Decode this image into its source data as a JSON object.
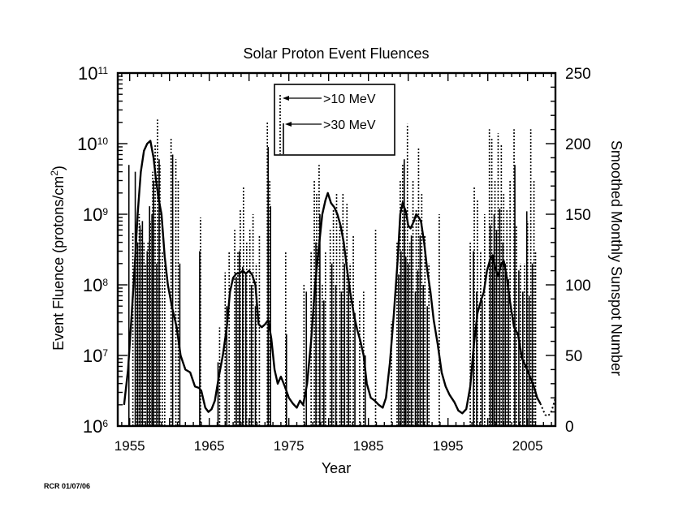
{
  "chart_data": {
    "type": "bar",
    "title": "Solar Proton Event Fluences",
    "xlabel": "Year",
    "ylabel": "Event Fluence  (protons/cm",
    "ylabel_sup": "2",
    "ylabel_close": ")",
    "y2label": "Smoothed Monthly Sunspot Number",
    "xlim": [
      1953.5,
      2008.5
    ],
    "ylim_log10": [
      6,
      11
    ],
    "y2lim": [
      0,
      250
    ],
    "x_ticks": [
      "1955",
      "1965",
      "1975",
      "1985",
      "1995",
      "2005"
    ],
    "y_ticks": [
      {
        "base": "10",
        "exp": "6"
      },
      {
        "base": "10",
        "exp": "7"
      },
      {
        "base": "10",
        "exp": "8"
      },
      {
        "base": "10",
        "exp": "9"
      },
      {
        "base": "10",
        "exp": "10"
      },
      {
        "base": "10",
        "exp": "11"
      }
    ],
    "y2_ticks": [
      "0",
      "50",
      "100",
      "150",
      "200",
      "250"
    ],
    "legend": {
      "position": "top-center",
      "entries": [
        {
          "label": ">10 MeV",
          "style": "dotted"
        },
        {
          "label": ">30 MeV",
          "style": "solid"
        }
      ]
    },
    "series": [
      {
        "name": ">10 MeV",
        "style": "dotted",
        "events": [
          [
            1955.4,
            560000000.0
          ],
          [
            1955.9,
            300000000.0
          ],
          [
            1956.2,
            1000000000.0
          ],
          [
            1956.5,
            600000000.0
          ],
          [
            1956.8,
            400000000.0
          ],
          [
            1957.0,
            200000000.0
          ],
          [
            1957.3,
            400000000.0
          ],
          [
            1957.6,
            800000000.0
          ],
          [
            1957.9,
            4000000000.0
          ],
          [
            1958.2,
            10000000000.0
          ],
          [
            1958.5,
            22000000000.0
          ],
          [
            1958.8,
            5000000000.0
          ],
          [
            1959.1,
            300000000.0
          ],
          [
            1959.4,
            200000000.0
          ],
          [
            1960.2,
            12000000000.0
          ],
          [
            1960.8,
            6000000000.0
          ],
          [
            1961.1,
            3000000000.0
          ],
          [
            1963.9,
            900000000.0
          ],
          [
            1966.3,
            25000000.0
          ],
          [
            1967.0,
            150000000.0
          ],
          [
            1967.5,
            300000000.0
          ],
          [
            1968.2,
            600000000.0
          ],
          [
            1968.6,
            300000000.0
          ],
          [
            1968.9,
            1200000000.0
          ],
          [
            1969.3,
            2400000000.0
          ],
          [
            1969.7,
            400000000.0
          ],
          [
            1970.1,
            600000000.0
          ],
          [
            1970.5,
            1000000000.0
          ],
          [
            1970.9,
            200000000.0
          ],
          [
            1971.3,
            500000000.0
          ],
          [
            1972.3,
            20000000000.0
          ],
          [
            1972.6,
            3000000000.0
          ],
          [
            1974.6,
            300000000.0
          ],
          [
            1976.9,
            100000000.0
          ],
          [
            1977.8,
            300000000.0
          ],
          [
            1978.2,
            3000000000.0
          ],
          [
            1978.5,
            2000000000.0
          ],
          [
            1978.8,
            5000000000.0
          ],
          [
            1979.2,
            100000000.0
          ],
          [
            1979.6,
            300000000.0
          ],
          [
            1980.2,
            600000000.0
          ],
          [
            1980.6,
            1200000000.0
          ],
          [
            1981.0,
            2000000000.0
          ],
          [
            1981.4,
            800000000.0
          ],
          [
            1981.8,
            2000000000.0
          ],
          [
            1982.3,
            1400000000.0
          ],
          [
            1982.7,
            200000000.0
          ],
          [
            1983.1,
            500000000.0
          ],
          [
            1983.9,
            60000000.0
          ],
          [
            1984.4,
            80000000.0
          ],
          [
            1985.9,
            600000000.0
          ],
          [
            1987.9,
            30000000.0
          ],
          [
            1988.6,
            400000000.0
          ],
          [
            1989.0,
            3000000000.0
          ],
          [
            1989.3,
            5000000000.0
          ],
          [
            1989.6,
            1000000000.0
          ],
          [
            1989.9,
            19000000000.0
          ],
          [
            1990.2,
            400000000.0
          ],
          [
            1990.6,
            3000000000.0
          ],
          [
            1991.0,
            1200000000.0
          ],
          [
            1991.3,
            9000000000.0
          ],
          [
            1991.7,
            2000000000.0
          ],
          [
            1992.1,
            500000000.0
          ],
          [
            1992.6,
            200000000.0
          ],
          [
            1993.9,
            1000000000.0
          ],
          [
            1997.8,
            400000000.0
          ],
          [
            1998.3,
            2400000000.0
          ],
          [
            1998.7,
            1600000000.0
          ],
          [
            1999.1,
            300000000.0
          ],
          [
            1999.6,
            1000000000.0
          ],
          [
            2000.2,
            16000000000.0
          ],
          [
            2000.5,
            12000000000.0
          ],
          [
            2000.9,
            3000000000.0
          ],
          [
            2001.3,
            14000000000.0
          ],
          [
            2001.7,
            10000000000.0
          ],
          [
            2002.0,
            2000000000.0
          ],
          [
            2002.4,
            1200000000.0
          ],
          [
            2002.8,
            3000000000.0
          ],
          [
            2003.3,
            16000000000.0
          ],
          [
            2003.6,
            700000000.0
          ],
          [
            2004.1,
            200000000.0
          ],
          [
            2004.6,
            200000000.0
          ],
          [
            2005.0,
            800000000.0
          ],
          [
            2005.4,
            16000000000.0
          ],
          [
            2005.8,
            3000000000.0
          ],
          [
            2006.0,
            300000000.0
          ]
        ]
      },
      {
        "name": ">30 MeV",
        "style": "solid",
        "events": [
          [
            1954.9,
            5000000000.0
          ],
          [
            1955.7,
            4000000000.0
          ],
          [
            1956.0,
            400000000.0
          ],
          [
            1956.3,
            700000000.0
          ],
          [
            1956.6,
            800000000.0
          ],
          [
            1957.2,
            300000000.0
          ],
          [
            1957.5,
            1300000000.0
          ],
          [
            1957.8,
            1000000000.0
          ],
          [
            1958.0,
            3000000000.0
          ],
          [
            1958.4,
            200000000.0
          ],
          [
            1958.7,
            6000000000.0
          ],
          [
            1960.4,
            7000000000.0
          ],
          [
            1961.3,
            200000000.0
          ],
          [
            1963.8,
            300000000.0
          ],
          [
            1966.1,
            8000000.0
          ],
          [
            1967.2,
            50000000.0
          ],
          [
            1968.4,
            130000000.0
          ],
          [
            1968.8,
            300000000.0
          ],
          [
            1969.2,
            180000000.0
          ],
          [
            1969.6,
            150000000.0
          ],
          [
            1970.3,
            100000000.0
          ],
          [
            1970.8,
            50000000.0
          ],
          [
            1972.4,
            9000000000.0
          ],
          [
            1972.7,
            1300000000.0
          ],
          [
            1974.7,
            20000000.0
          ],
          [
            1977.2,
            80000000.0
          ],
          [
            1978.4,
            400000000.0
          ],
          [
            1978.9,
            1000000000.0
          ],
          [
            1979.4,
            60000000.0
          ],
          [
            1980.4,
            200000000.0
          ],
          [
            1980.9,
            100000000.0
          ],
          [
            1981.6,
            80000000.0
          ],
          [
            1982.0,
            200000000.0
          ],
          [
            1982.5,
            100000000.0
          ],
          [
            1983.3,
            40000000.0
          ],
          [
            1984.6,
            10000000.0
          ],
          [
            1988.8,
            140000000.0
          ],
          [
            1989.1,
            300000000.0
          ],
          [
            1989.5,
            6000000000.0
          ],
          [
            1989.7,
            250000000.0
          ],
          [
            1990.0,
            200000000.0
          ],
          [
            1990.4,
            500000000.0
          ],
          [
            1990.9,
            80000000.0
          ],
          [
            1991.2,
            160000000.0
          ],
          [
            1991.5,
            500000000.0
          ],
          [
            1991.9,
            100000000.0
          ],
          [
            1992.4,
            50000000.0
          ],
          [
            1998.2,
            300000000.0
          ],
          [
            1998.6,
            80000000.0
          ],
          [
            1999.3,
            60000000.0
          ],
          [
            2000.3,
            700000000.0
          ],
          [
            2000.6,
            250000000.0
          ],
          [
            2000.8,
            1000000000.0
          ],
          [
            2001.1,
            600000000.0
          ],
          [
            2001.5,
            1200000000.0
          ],
          [
            2001.9,
            400000000.0
          ],
          [
            2002.2,
            200000000.0
          ],
          [
            2002.6,
            120000000.0
          ],
          [
            2003.4,
            5000000000.0
          ],
          [
            2003.9,
            160000000.0
          ],
          [
            2004.4,
            80000000.0
          ],
          [
            2004.9,
            1100000000.0
          ],
          [
            2005.2,
            70000000.0
          ],
          [
            2005.6,
            200000000.0
          ]
        ]
      }
    ],
    "sunspot_curve": {
      "name": "Smoothed Monthly Sunspot Number",
      "axis": "right",
      "points": [
        [
          1954.3,
          15
        ],
        [
          1954.8,
          40
        ],
        [
          1955.2,
          75
        ],
        [
          1955.6,
          110
        ],
        [
          1956.0,
          150
        ],
        [
          1956.4,
          180
        ],
        [
          1956.8,
          195
        ],
        [
          1957.2,
          200
        ],
        [
          1957.6,
          202
        ],
        [
          1958.0,
          190
        ],
        [
          1958.3,
          175
        ],
        [
          1958.6,
          162
        ],
        [
          1959.0,
          150
        ],
        [
          1959.4,
          120
        ],
        [
          1959.8,
          100
        ],
        [
          1960.3,
          85
        ],
        [
          1960.9,
          70
        ],
        [
          1961.4,
          50
        ],
        [
          1962.0,
          40
        ],
        [
          1962.6,
          38
        ],
        [
          1963.2,
          28
        ],
        [
          1963.7,
          27
        ],
        [
          1964.0,
          25
        ],
        [
          1964.5,
          13
        ],
        [
          1964.9,
          10
        ],
        [
          1965.3,
          12
        ],
        [
          1965.7,
          18
        ],
        [
          1966.2,
          35
        ],
        [
          1966.7,
          50
        ],
        [
          1967.2,
          70
        ],
        [
          1967.6,
          95
        ],
        [
          1968.0,
          105
        ],
        [
          1968.4,
          108
        ],
        [
          1968.8,
          108
        ],
        [
          1969.2,
          110
        ],
        [
          1969.6,
          108
        ],
        [
          1970.0,
          110
        ],
        [
          1970.4,
          107
        ],
        [
          1970.8,
          100
        ],
        [
          1971.2,
          72
        ],
        [
          1971.6,
          70
        ],
        [
          1972.0,
          72
        ],
        [
          1972.4,
          75
        ],
        [
          1972.8,
          62
        ],
        [
          1973.2,
          40
        ],
        [
          1973.6,
          30
        ],
        [
          1974.0,
          35
        ],
        [
          1974.5,
          28
        ],
        [
          1975.0,
          20
        ],
        [
          1975.5,
          16
        ],
        [
          1976.0,
          13
        ],
        [
          1976.4,
          18
        ],
        [
          1976.8,
          15
        ],
        [
          1977.3,
          30
        ],
        [
          1977.8,
          60
        ],
        [
          1978.3,
          100
        ],
        [
          1978.8,
          128
        ],
        [
          1979.2,
          150
        ],
        [
          1979.6,
          160
        ],
        [
          1979.9,
          165
        ],
        [
          1980.3,
          158
        ],
        [
          1980.7,
          155
        ],
        [
          1981.1,
          150
        ],
        [
          1981.5,
          142
        ],
        [
          1981.9,
          130
        ],
        [
          1982.3,
          112
        ],
        [
          1982.7,
          95
        ],
        [
          1983.2,
          78
        ],
        [
          1983.6,
          68
        ],
        [
          1984.0,
          60
        ],
        [
          1984.4,
          50
        ],
        [
          1984.8,
          30
        ],
        [
          1985.3,
          20
        ],
        [
          1985.8,
          18
        ],
        [
          1986.3,
          15
        ],
        [
          1986.8,
          13
        ],
        [
          1987.2,
          20
        ],
        [
          1987.7,
          45
        ],
        [
          1988.2,
          80
        ],
        [
          1988.7,
          120
        ],
        [
          1989.0,
          150
        ],
        [
          1989.3,
          158
        ],
        [
          1989.7,
          152
        ],
        [
          1990.0,
          142
        ],
        [
          1990.3,
          140
        ],
        [
          1990.7,
          145
        ],
        [
          1991.0,
          150
        ],
        [
          1991.3,
          148
        ],
        [
          1991.6,
          145
        ],
        [
          1992.0,
          130
        ],
        [
          1992.4,
          110
        ],
        [
          1992.8,
          95
        ],
        [
          1993.2,
          75
        ],
        [
          1993.7,
          58
        ],
        [
          1994.2,
          38
        ],
        [
          1994.7,
          28
        ],
        [
          1995.2,
          22
        ],
        [
          1995.8,
          17
        ],
        [
          1996.3,
          11
        ],
        [
          1996.8,
          9
        ],
        [
          1997.3,
          12
        ],
        [
          1997.8,
          28
        ],
        [
          1998.2,
          55
        ],
        [
          1998.7,
          80
        ],
        [
          1999.1,
          88
        ],
        [
          1999.5,
          95
        ],
        [
          1999.9,
          110
        ],
        [
          2000.3,
          118
        ],
        [
          2000.6,
          121
        ],
        [
          2000.9,
          113
        ],
        [
          2001.3,
          106
        ],
        [
          2001.7,
          115
        ],
        [
          2002.0,
          117
        ],
        [
          2002.4,
          105
        ],
        [
          2002.8,
          88
        ],
        [
          2003.3,
          70
        ],
        [
          2003.8,
          65
        ],
        [
          2004.3,
          48
        ],
        [
          2004.8,
          42
        ],
        [
          2005.3,
          35
        ],
        [
          2005.8,
          28
        ],
        [
          2006.2,
          20
        ],
        [
          2006.6,
          16
        ]
      ]
    },
    "sunspot_prediction": {
      "style": "dotted",
      "points": [
        [
          2006.6,
          16
        ],
        [
          2006.9,
          12
        ],
        [
          2007.2,
          8
        ],
        [
          2007.5,
          7
        ],
        [
          2007.9,
          9
        ],
        [
          2008.2,
          14
        ],
        [
          2008.5,
          20
        ]
      ]
    }
  },
  "credit": "RCR 01/07/06"
}
